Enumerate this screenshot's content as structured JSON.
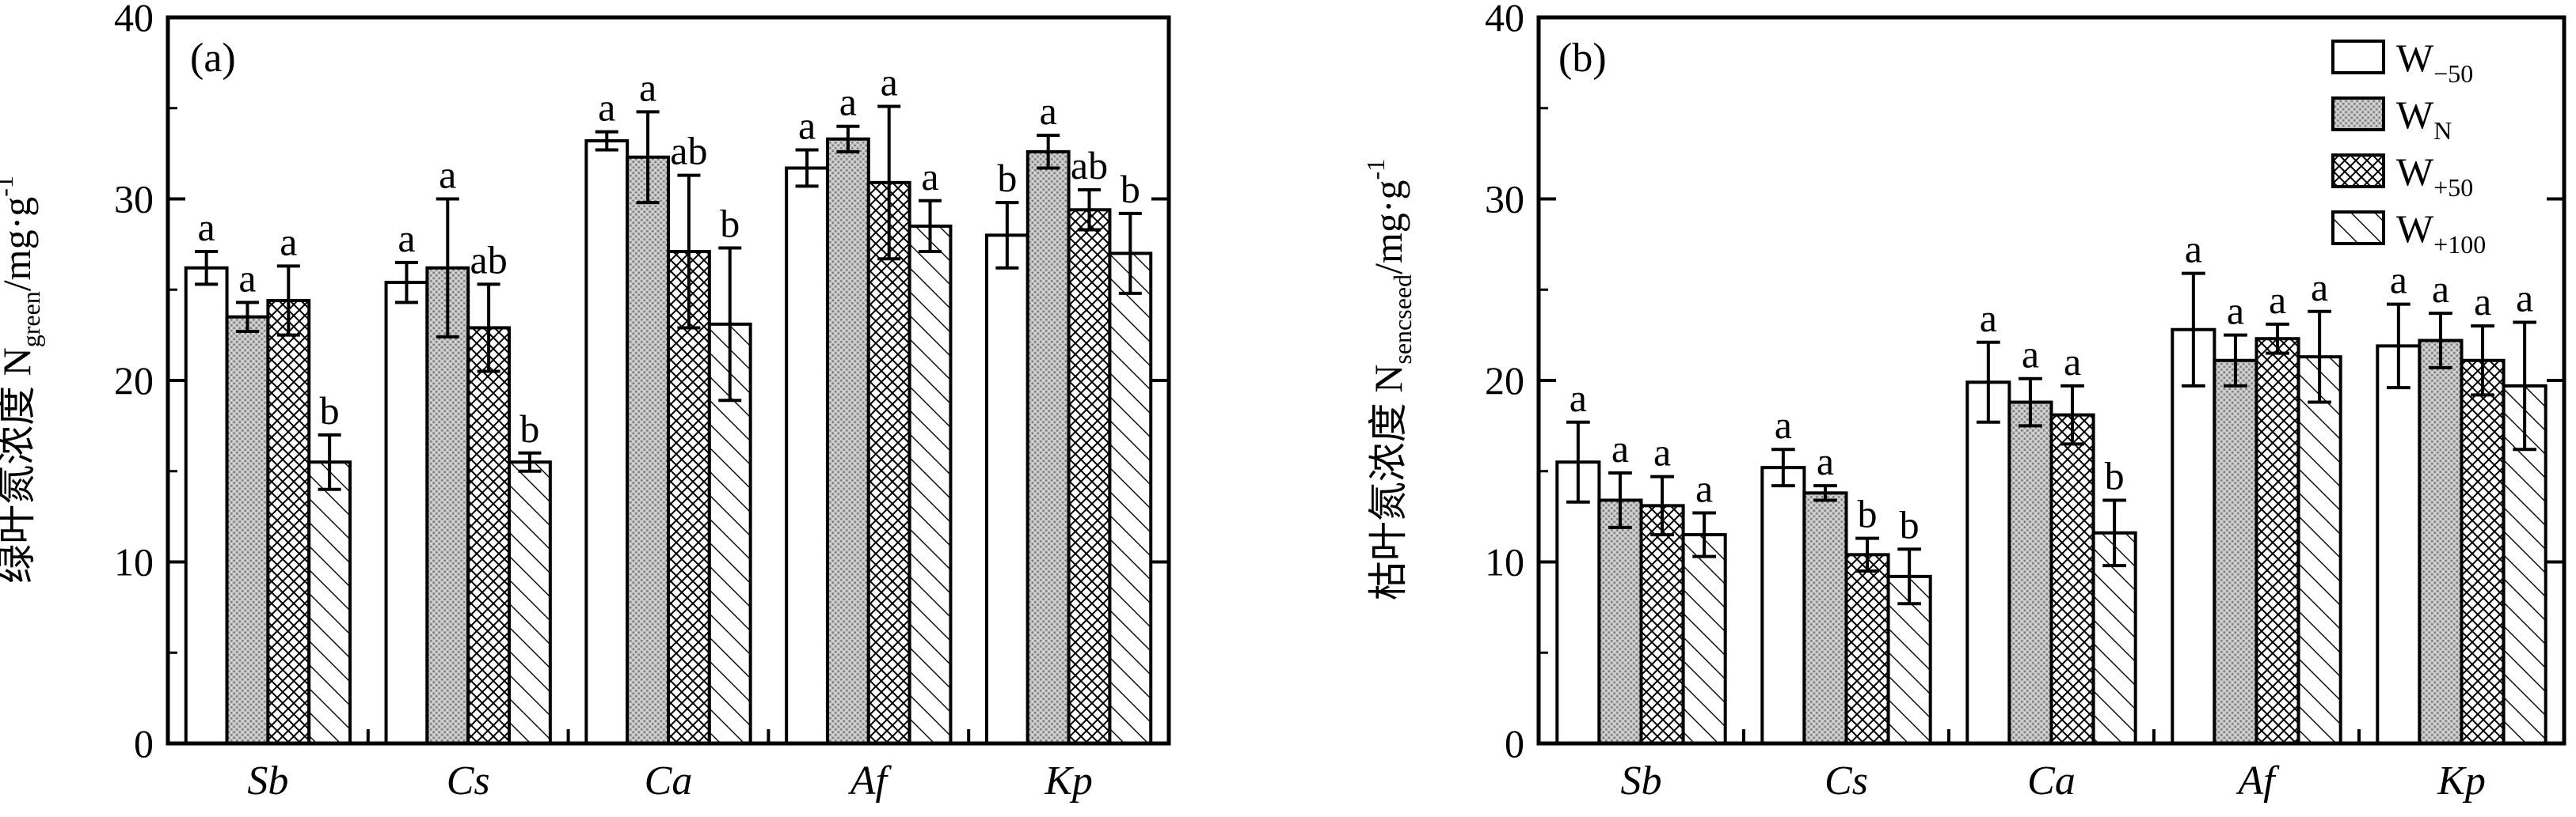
{
  "chart_data": [
    {
      "type": "bar",
      "panel_label": "(a)",
      "ylabel_main": "绿叶氮浓度 N",
      "ylabel_sub": "green",
      "ylabel_unit": "/mg·g",
      "ylabel_exp": "-1",
      "ylim": [
        0,
        40
      ],
      "yticks": [
        "0",
        "10",
        "20",
        "30",
        "40"
      ],
      "categories": [
        "Sb",
        "Cs",
        "Ca",
        "Af",
        "Kp"
      ],
      "series": [
        {
          "values": [
            26.2,
            25.4,
            33.2,
            31.7,
            28.0
          ],
          "errors": [
            0.9,
            1.1,
            0.5,
            1.0,
            1.8
          ],
          "letters": [
            "a",
            "a",
            "a",
            "a",
            "b"
          ]
        },
        {
          "values": [
            23.5,
            26.2,
            32.3,
            33.3,
            32.6
          ],
          "errors": [
            0.8,
            3.8,
            2.5,
            0.7,
            0.9
          ],
          "letters": [
            "a",
            "a",
            "a",
            "a",
            "a"
          ]
        },
        {
          "values": [
            24.4,
            22.9,
            27.1,
            30.9,
            29.4
          ],
          "errors": [
            1.9,
            2.4,
            4.2,
            4.2,
            1.1
          ],
          "letters": [
            "a",
            "ab",
            "ab",
            "a",
            "ab"
          ]
        },
        {
          "values": [
            15.5,
            15.5,
            23.1,
            28.5,
            27.0
          ],
          "errors": [
            1.5,
            0.5,
            4.2,
            1.4,
            2.2
          ],
          "letters": [
            "b",
            "b",
            "b",
            "a",
            "b"
          ]
        }
      ]
    },
    {
      "type": "bar",
      "panel_label": "(b)",
      "ylabel_main": "枯叶氮浓度 N",
      "ylabel_sub": "sencseed",
      "ylabel_unit": "/mg·g",
      "ylabel_exp": "-1",
      "ylim": [
        0,
        40
      ],
      "yticks": [
        "0",
        "10",
        "20",
        "30",
        "40"
      ],
      "categories": [
        "Sb",
        "Cs",
        "Ca",
        "Af",
        "Kp"
      ],
      "legend_position": "top-right",
      "series": [
        {
          "name": "W",
          "name_sub": "−50",
          "values": [
            15.5,
            15.2,
            19.9,
            22.8,
            21.9
          ],
          "errors": [
            2.2,
            1.0,
            2.2,
            3.1,
            2.3
          ],
          "letters": [
            "a",
            "a",
            "a",
            "a",
            "a"
          ]
        },
        {
          "name": "W",
          "name_sub": "N",
          "values": [
            13.4,
            13.8,
            18.8,
            21.1,
            22.2
          ],
          "errors": [
            1.5,
            0.4,
            1.3,
            1.4,
            1.5
          ],
          "letters": [
            "a",
            "a",
            "a",
            "a",
            "a"
          ]
        },
        {
          "name": "W",
          "name_sub": "+50",
          "values": [
            13.1,
            10.4,
            18.1,
            22.3,
            21.1
          ],
          "errors": [
            1.6,
            0.9,
            1.6,
            0.8,
            1.9
          ],
          "letters": [
            "a",
            "b",
            "a",
            "a",
            "a"
          ]
        },
        {
          "name": "W",
          "name_sub": "+100",
          "values": [
            11.5,
            9.2,
            11.6,
            21.3,
            19.7
          ],
          "errors": [
            1.2,
            1.5,
            1.8,
            2.5,
            3.5
          ],
          "letters": [
            "a",
            "b",
            "b",
            "a",
            "a"
          ]
        }
      ]
    }
  ]
}
